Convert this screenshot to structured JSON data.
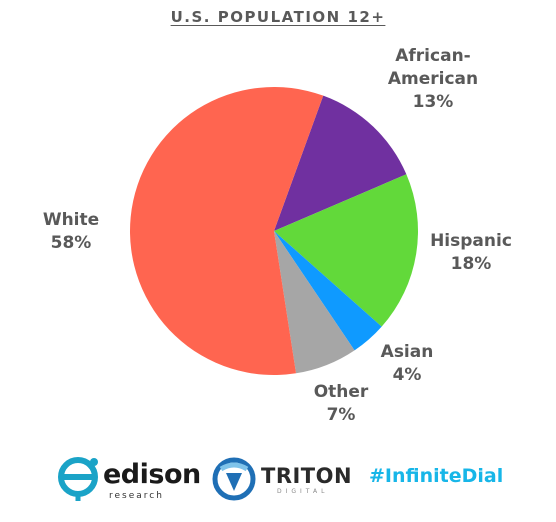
{
  "chart_data": {
    "type": "pie",
    "title": "U.S. POPULATION 12+",
    "slices": [
      {
        "name": "African-American",
        "name_lines": [
          "African-",
          "American"
        ],
        "value": 13,
        "label": "13%",
        "color": "#7030a0"
      },
      {
        "name": "Hispanic",
        "name_lines": [
          "Hispanic"
        ],
        "value": 18,
        "label": "18%",
        "color": "#62d93a"
      },
      {
        "name": "Asian",
        "name_lines": [
          "Asian"
        ],
        "value": 4,
        "label": "4%",
        "color": "#0f9aff"
      },
      {
        "name": "Other",
        "name_lines": [
          "Other"
        ],
        "value": 7,
        "label": "7%",
        "color": "#a6a6a6"
      },
      {
        "name": "White",
        "name_lines": [
          "White"
        ],
        "value": 58,
        "label": "58%",
        "color": "#ff6550"
      }
    ]
  },
  "footer": {
    "edison": {
      "name": "edison",
      "sub": "research"
    },
    "triton": {
      "name": "TRITON",
      "sub": "DIGITAL"
    },
    "hashtag": "#InfiniteDial"
  },
  "colors": {
    "text": "#595959",
    "hashtag": "#17b6e8",
    "edison_teal": "#1aa3c7",
    "triton_blue": "#1f6fb5"
  },
  "icons": [
    "edison-logo-icon",
    "triton-logo-icon"
  ]
}
